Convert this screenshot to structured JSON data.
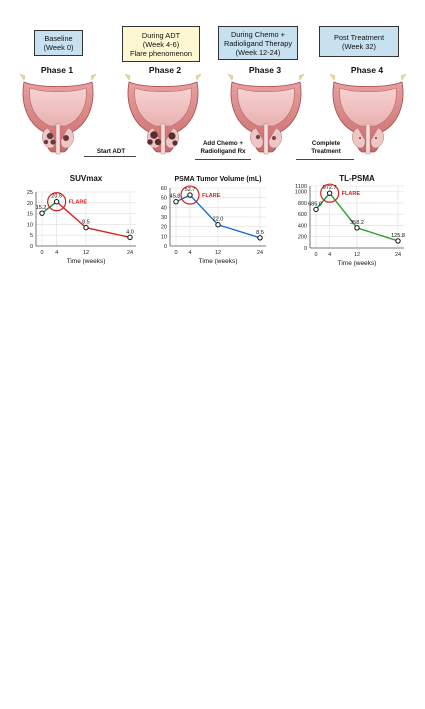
{
  "phases": [
    {
      "box_text": "Baseline\n(Week 0)",
      "box_color": "#c7e1f0",
      "label": "Phase 1"
    },
    {
      "box_text": "During ADT\n(Week 4-6)\nFlare phenomenon",
      "box_color": "#fdf8d2",
      "label": "Phase 2"
    },
    {
      "box_text": "During Chemo +\nRadioligand Therapy\n(Week 12-24)",
      "box_color": "#c7e1f0",
      "label": "Phase 3"
    },
    {
      "box_text": "Post Treatment\n(Week 32)",
      "box_color": "#c7e1f0",
      "label": "Phase 4"
    }
  ],
  "actions": [
    "Start ADT",
    "Add Chemo +\nRadioligand Rx",
    "Complete\nTreatment"
  ],
  "flare_label": "FLARE",
  "chart_data": [
    {
      "type": "line",
      "title": "SUVmax",
      "xlabel": "Time (weeks)",
      "ylabel": "",
      "x": [
        0,
        4,
        12,
        24
      ],
      "values": [
        15.2,
        20.5,
        8.5,
        4.0
      ],
      "value_labels": [
        "15.2",
        "20.5",
        "8.5",
        "4.0"
      ],
      "xticks": [
        "0",
        "4",
        "12",
        "24"
      ],
      "yticks": [
        0,
        5,
        10,
        15,
        20,
        25
      ],
      "ylim": [
        0,
        25
      ],
      "colors": [
        "#1a8a3a",
        "#d32020"
      ],
      "flare_index": 1,
      "grid": true
    },
    {
      "type": "line",
      "title": "PSMA Tumor Volume (mL)",
      "xlabel": "Time (weeks)",
      "ylabel": "",
      "x": [
        0,
        4,
        12,
        24
      ],
      "values": [
        45.8,
        52.7,
        22.0,
        8.5
      ],
      "value_labels": [
        "45.8",
        "52.7",
        "22.0",
        "8.5"
      ],
      "xticks": [
        "0",
        "4",
        "12",
        "24"
      ],
      "yticks": [
        0,
        10,
        20,
        30,
        40,
        50,
        60
      ],
      "ylim": [
        0,
        60
      ],
      "colors": [
        "#1e6fc4",
        "#1e6fc4"
      ],
      "flare_index": 1,
      "grid": true
    },
    {
      "type": "line",
      "title": "TL-PSMA",
      "xlabel": "Time (weeks)",
      "ylabel": "",
      "x": [
        0,
        4,
        12,
        24
      ],
      "values": [
        685.0,
        972.7,
        358.2,
        125.8
      ],
      "value_labels": [
        "685.0",
        "972.7",
        "358.2",
        "125.8"
      ],
      "xticks": [
        "0",
        "4",
        "12",
        "24"
      ],
      "yticks": [
        0,
        200,
        400,
        600,
        800,
        1000,
        1100
      ],
      "ylim": [
        0,
        1100
      ],
      "colors": [
        "#1a8a3a",
        "#2aa12a"
      ],
      "flare_index": 1,
      "grid": true
    }
  ]
}
